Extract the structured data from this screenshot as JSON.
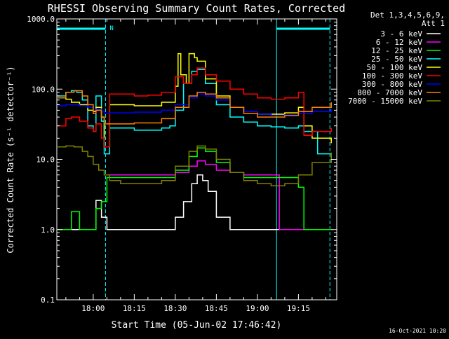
{
  "chart_data": {
    "type": "line",
    "title": "RHESSI Observing Summary Count Rates, Corrected",
    "xlabel": "Start Time (05-Jun-02 17:46:42)",
    "ylabel": "Corrected Count Rate (s⁻¹ detector⁻¹)",
    "y_scale": "log",
    "ylim": [
      0.1,
      1000
    ],
    "xlim": [
      "17:46:42",
      "19:29:00"
    ],
    "y_ticks": [
      "0.1",
      "1.0",
      "10.0",
      "100.0",
      "1000.0"
    ],
    "x_ticks": [
      "18:00",
      "18:15",
      "18:30",
      "18:45",
      "19:00",
      "19:15"
    ],
    "legend_header": [
      "Det 1,3,4,5,6,9,",
      "Att 1"
    ],
    "legend_position": "right",
    "timestamp": "16-Oct-2021 10:20",
    "flag_label": "N",
    "night_intervals": [
      [
        "17:46:42",
        "18:04:30"
      ],
      [
        "19:07:00",
        "19:26:30"
      ]
    ],
    "series": [
      {
        "name": "3 - 6 keV",
        "color": "#ffffff",
        "x": [
          "17:47",
          "18:00",
          "18:01",
          "18:03",
          "18:05",
          "18:10",
          "18:20",
          "18:25",
          "18:30",
          "18:33",
          "18:36",
          "18:38",
          "18:40",
          "18:42",
          "18:45",
          "18:50",
          "18:55",
          "19:00",
          "19:07",
          "19:10",
          "19:15",
          "19:20",
          "19:25",
          "19:27"
        ],
        "y": [
          1.0,
          1.0,
          2.6,
          1.5,
          1.0,
          1.0,
          1.0,
          1.0,
          1.5,
          2.5,
          4.5,
          6.0,
          5.0,
          3.5,
          1.5,
          1.0,
          1.0,
          1.0,
          1.0,
          1.0,
          1.0,
          1.0,
          1.0,
          1.0
        ]
      },
      {
        "name": "6 - 12 keV",
        "color": "#ff00ff",
        "x": [
          "17:47",
          "18:00",
          "18:03",
          "18:05",
          "18:15",
          "18:25",
          "18:30",
          "18:35",
          "18:38",
          "18:41",
          "18:45",
          "18:50",
          "18:55",
          "19:00",
          "19:05",
          "19:07",
          "19:08",
          "19:20",
          "19:25",
          "19:27"
        ],
        "y": [
          null,
          null,
          null,
          6.0,
          6.0,
          6.0,
          6.5,
          8.0,
          9.5,
          8.5,
          7.0,
          6.5,
          6.0,
          6.0,
          6.0,
          6.0,
          1.0,
          1.0,
          1.0,
          1.0
        ]
      },
      {
        "name": "12 - 25 keV",
        "color": "#00ff00",
        "x": [
          "17:47",
          "17:52",
          "17:55",
          "17:59",
          "18:01",
          "18:03",
          "18:05",
          "18:15",
          "18:25",
          "18:30",
          "18:35",
          "18:38",
          "18:41",
          "18:45",
          "18:50",
          "18:55",
          "19:00",
          "19:05",
          "19:07",
          "19:15",
          "19:17",
          "19:22",
          "19:27"
        ],
        "y": [
          1.0,
          1.8,
          1.0,
          1.0,
          2.0,
          2.5,
          5.5,
          5.5,
          5.5,
          7.0,
          11.0,
          14.5,
          13.0,
          9.0,
          6.5,
          5.5,
          5.5,
          5.5,
          5.5,
          4.0,
          1.0,
          1.0,
          1.0
        ]
      },
      {
        "name": "25 - 50 keV",
        "color": "#00ffff",
        "x": [
          "17:47",
          "17:50",
          "17:52",
          "17:54",
          "17:56",
          "17:58",
          "18:00",
          "18:01",
          "18:03",
          "18:04",
          "18:06",
          "18:15",
          "18:25",
          "18:28",
          "18:30",
          "18:33",
          "18:36",
          "18:38",
          "18:41",
          "18:45",
          "18:50",
          "18:55",
          "19:00",
          "19:05",
          "19:10",
          "19:15",
          "19:17",
          "19:22",
          "19:27"
        ],
        "y": [
          80,
          90,
          95,
          90,
          70,
          30,
          25,
          80,
          35,
          12,
          28,
          26,
          28,
          30,
          50,
          120,
          180,
          190,
          120,
          60,
          40,
          34,
          30,
          29,
          28,
          30,
          25,
          12,
          9
        ]
      },
      {
        "name": "50 - 100 keV",
        "color": "#ffff00",
        "x": [
          "17:47",
          "17:50",
          "17:52",
          "17:55",
          "17:58",
          "18:00",
          "18:01",
          "18:03",
          "18:04",
          "18:06",
          "18:15",
          "18:25",
          "18:30",
          "18:31",
          "18:32",
          "18:34",
          "18:35",
          "18:37",
          "18:38",
          "18:41",
          "18:45",
          "18:50",
          "18:55",
          "19:00",
          "19:05",
          "19:10",
          "19:15",
          "19:17",
          "19:20",
          "19:27"
        ],
        "y": [
          75,
          72,
          65,
          60,
          50,
          48,
          55,
          40,
          15,
          60,
          58,
          65,
          110,
          320,
          160,
          120,
          320,
          280,
          250,
          140,
          80,
          55,
          48,
          44,
          44,
          46,
          55,
          30,
          20,
          17
        ]
      },
      {
        "name": "100 - 300 keV",
        "color": "#ff0000",
        "x": [
          "17:47",
          "17:50",
          "17:52",
          "17:55",
          "17:58",
          "18:00",
          "18:01",
          "18:03",
          "18:04",
          "18:06",
          "18:15",
          "18:20",
          "18:25",
          "18:30",
          "18:33",
          "18:36",
          "18:38",
          "18:41",
          "18:45",
          "18:50",
          "18:55",
          "19:00",
          "19:05",
          "19:10",
          "19:15",
          "19:17",
          "19:20",
          "19:27"
        ],
        "y": [
          30,
          38,
          40,
          35,
          28,
          25,
          32,
          20,
          15,
          85,
          80,
          82,
          90,
          150,
          120,
          160,
          200,
          160,
          130,
          100,
          85,
          75,
          72,
          75,
          90,
          22,
          25,
          28
        ]
      },
      {
        "name": "300 - 800 keV",
        "color": "#0000ff",
        "x": [
          "17:47",
          "17:50",
          "17:55",
          "17:58",
          "18:00",
          "18:01",
          "18:03",
          "18:04",
          "18:06",
          "18:15",
          "18:25",
          "18:30",
          "18:35",
          "18:38",
          "18:41",
          "18:45",
          "18:50",
          "18:55",
          "19:00",
          "19:05",
          "19:10",
          "19:15",
          "19:20",
          "19:27"
        ],
        "y": [
          58,
          60,
          58,
          55,
          50,
          52,
          48,
          45,
          46,
          47,
          50,
          60,
          75,
          85,
          80,
          70,
          55,
          48,
          44,
          42,
          43,
          45,
          48,
          52
        ]
      },
      {
        "name": "800 - 7000 keV",
        "color": "#ff8000",
        "x": [
          "17:47",
          "17:50",
          "17:53",
          "17:56",
          "17:58",
          "18:00",
          "18:01",
          "18:03",
          "18:04",
          "18:06",
          "18:15",
          "18:25",
          "18:30",
          "18:35",
          "18:38",
          "18:41",
          "18:45",
          "18:50",
          "18:55",
          "19:00",
          "19:05",
          "19:10",
          "19:15",
          "19:20",
          "19:27"
        ],
        "y": [
          75,
          90,
          95,
          80,
          60,
          45,
          50,
          40,
          32,
          32,
          33,
          38,
          55,
          80,
          90,
          85,
          75,
          55,
          45,
          40,
          40,
          42,
          48,
          55,
          65
        ]
      },
      {
        "name": "7000 - 15000 keV",
        "color": "#808000",
        "x": [
          "17:47",
          "17:50",
          "17:53",
          "17:56",
          "17:58",
          "18:00",
          "18:02",
          "18:04",
          "18:06",
          "18:10",
          "18:15",
          "18:20",
          "18:25",
          "18:30",
          "18:35",
          "18:38",
          "18:41",
          "18:45",
          "18:50",
          "18:55",
          "19:00",
          "19:05",
          "19:10",
          "19:15",
          "19:20",
          "19:27"
        ],
        "y": [
          15,
          15.5,
          15,
          13,
          11,
          8.5,
          7,
          6,
          5,
          4.5,
          4.5,
          4.5,
          5,
          8,
          13,
          15.5,
          14,
          10,
          6.5,
          5,
          4.5,
          4.2,
          4.5,
          6,
          9,
          12.5
        ]
      }
    ]
  }
}
